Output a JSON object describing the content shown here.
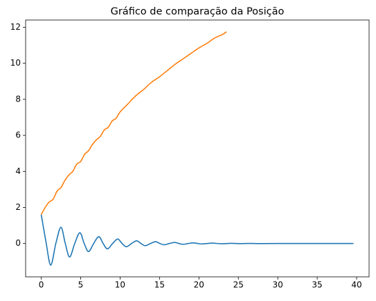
{
  "chart_data": {
    "type": "line",
    "title": "Gráfico de comparação da Posição",
    "xlim": [
      -1.98,
      41.58
    ],
    "xticks": [
      0,
      5,
      10,
      15,
      20,
      25,
      30,
      35,
      40
    ],
    "ylim": [
      -1.85,
      12.4
    ],
    "yticks": [
      0,
      2,
      4,
      6,
      8,
      10,
      12
    ],
    "series": [
      {
        "color": "#1f77b4",
        "x": [
          0,
          0.6,
          1.2,
          1.85,
          2.5,
          3.05,
          3.6,
          4.25,
          4.9,
          5.45,
          6.0,
          6.65,
          7.3,
          7.85,
          8.4,
          9.05,
          9.7,
          10.25,
          10.8,
          11.45,
          12.1,
          12.65,
          13.2,
          13.85,
          14.5,
          15.05,
          15.6,
          16.25,
          16.9,
          17.45,
          18.0,
          18.65,
          19.3,
          19.85,
          20.4,
          21.7,
          22.8,
          24.1,
          25.2,
          26.5,
          27.6,
          30,
          35,
          39.6
        ],
        "values": [
          1.6,
          0.1,
          -1.2,
          0,
          0.9,
          0,
          -0.75,
          0,
          0.6,
          0,
          -0.45,
          0,
          0.38,
          0,
          -0.3,
          0,
          0.25,
          0,
          -0.18,
          0,
          0.15,
          0,
          -0.12,
          0,
          0.1,
          0,
          -0.07,
          0,
          0.06,
          0,
          -0.045,
          0,
          0.035,
          0,
          -0.025,
          0.02,
          -0.015,
          0.01,
          -0.008,
          0.006,
          -0.004,
          0.002,
          0,
          0
        ]
      },
      {
        "color": "#ff7f0e",
        "x": [
          0,
          0.5,
          1,
          1.5,
          2,
          2.5,
          3,
          3.5,
          4,
          4.5,
          5,
          5.5,
          6,
          6.5,
          7,
          7.5,
          8,
          8.5,
          9,
          9.5,
          10,
          11,
          12,
          13,
          14,
          15,
          16,
          17,
          18,
          19,
          20,
          21,
          22,
          23,
          23.5
        ],
        "values": [
          1.6,
          2.0,
          2.3,
          2.45,
          2.9,
          3.1,
          3.5,
          3.8,
          4.0,
          4.4,
          4.55,
          4.95,
          5.15,
          5.5,
          5.75,
          5.95,
          6.3,
          6.45,
          6.8,
          6.95,
          7.3,
          7.75,
          8.2,
          8.55,
          8.95,
          9.25,
          9.6,
          9.95,
          10.25,
          10.55,
          10.85,
          11.1,
          11.4,
          11.6,
          11.75
        ]
      }
    ]
  }
}
